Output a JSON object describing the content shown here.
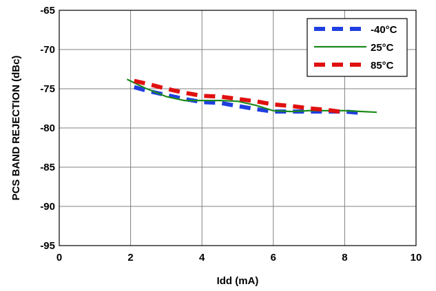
{
  "chart_data": {
    "type": "line",
    "title": "",
    "xlabel": "Idd (mA)",
    "ylabel": "PCS BAND REJECTION (dBc)",
    "xlim": [
      0,
      10
    ],
    "ylim": [
      -95,
      -65
    ],
    "xticks": [
      0,
      2,
      4,
      6,
      8,
      10
    ],
    "yticks": [
      -65,
      -70,
      -75,
      -80,
      -85,
      -90,
      -95
    ],
    "xtick_labels": [
      "0",
      "2",
      "4",
      "6",
      "8",
      "10"
    ],
    "ytick_labels": [
      "-65",
      "-70",
      "-75",
      "-80",
      "-85",
      "-90",
      "-95"
    ],
    "grid": true,
    "legend_position": "top-right",
    "series": [
      {
        "name": "-40°C",
        "color": "#1f3fe0",
        "dash": "long-dash",
        "x": [
          2.1,
          2.5,
          3.0,
          3.5,
          4.0,
          4.5,
          5.0,
          5.5,
          6.0,
          6.5,
          7.0,
          7.5,
          8.0,
          8.5
        ],
        "y": [
          -74.8,
          -75.3,
          -75.8,
          -76.3,
          -76.7,
          -76.8,
          -77.2,
          -77.6,
          -77.9,
          -77.9,
          -77.9,
          -77.9,
          -77.9,
          -78.1
        ]
      },
      {
        "name": "25°C",
        "color": "#1a8a1a",
        "dash": "solid",
        "x": [
          1.9,
          2.4,
          3.0,
          3.5,
          4.0,
          4.5,
          5.0,
          5.5,
          6.0,
          6.5,
          7.0,
          7.5,
          8.0,
          8.5,
          8.9
        ],
        "y": [
          -73.8,
          -74.9,
          -76.0,
          -76.5,
          -76.5,
          -76.5,
          -76.6,
          -77.1,
          -77.8,
          -77.9,
          -77.8,
          -77.8,
          -77.8,
          -77.9,
          -78.0
        ]
      },
      {
        "name": "85°C",
        "color": "#e01010",
        "dash": "long-dash",
        "x": [
          2.1,
          2.5,
          3.0,
          3.5,
          4.0,
          4.5,
          5.0,
          5.5,
          6.0,
          6.5,
          7.0,
          7.5,
          8.0
        ],
        "y": [
          -74.0,
          -74.4,
          -75.0,
          -75.5,
          -75.9,
          -76.0,
          -76.3,
          -76.6,
          -77.0,
          -77.2,
          -77.5,
          -77.7,
          -78.0
        ]
      }
    ]
  }
}
